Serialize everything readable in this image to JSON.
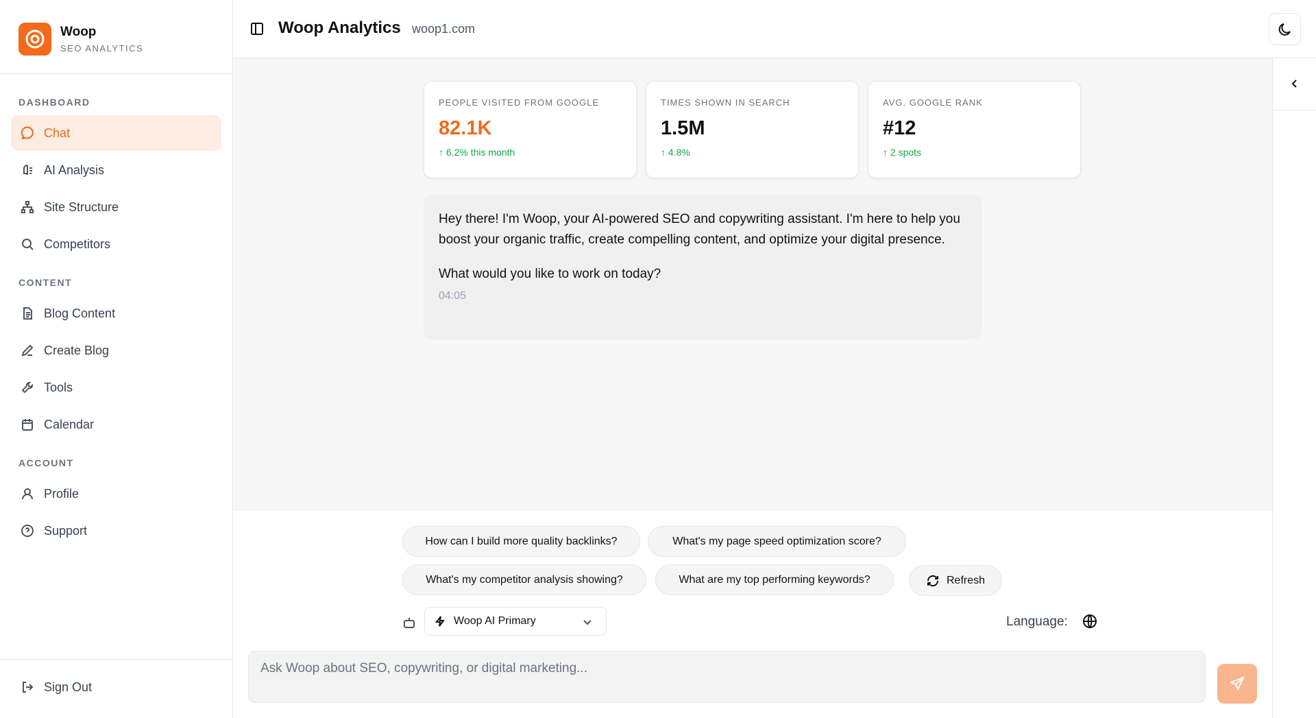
{
  "brand": {
    "name": "Woop",
    "tagline": "SEO ANALYTICS"
  },
  "sidebar": {
    "sections": [
      {
        "title": "DASHBOARD",
        "items": [
          "Chat",
          "AI Analysis",
          "Site Structure",
          "Competitors"
        ]
      },
      {
        "title": "CONTENT",
        "items": [
          "Blog Content",
          "Create Blog",
          "Tools",
          "Calendar"
        ]
      },
      {
        "title": "ACCOUNT",
        "items": [
          "Profile",
          "Support"
        ]
      }
    ],
    "sign_out": "Sign Out"
  },
  "header": {
    "title": "Woop Analytics",
    "domain": "woop1.com"
  },
  "stats": [
    {
      "label": "PEOPLE VISITED FROM GOOGLE",
      "value": "82.1K",
      "change": "↑ 6.2% this month"
    },
    {
      "label": "TIMES SHOWN IN SEARCH",
      "value": "1.5M",
      "change": "↑ 4.8%"
    },
    {
      "label": "AVG. GOOGLE RANK",
      "value": "#12",
      "change": "↑ 2 spots"
    }
  ],
  "message": {
    "paragraphs": [
      "Hey there! I'm Woop, your AI-powered SEO and copywriting assistant. I'm here to help you boost your organic traffic, create compelling content, and optimize your digital presence.",
      "What would you like to work on today?"
    ],
    "time": "04:05"
  },
  "suggestions": [
    "How can I build more quality backlinks?",
    "What's my page speed optimization score?",
    "What's my competitor analysis showing?",
    "What are my top performing keywords?"
  ],
  "refresh": "Refresh",
  "model": "Woop AI Primary",
  "language_label": "Language:",
  "input_placeholder": "Ask Woop about SEO, copywriting, or digital marketing..."
}
